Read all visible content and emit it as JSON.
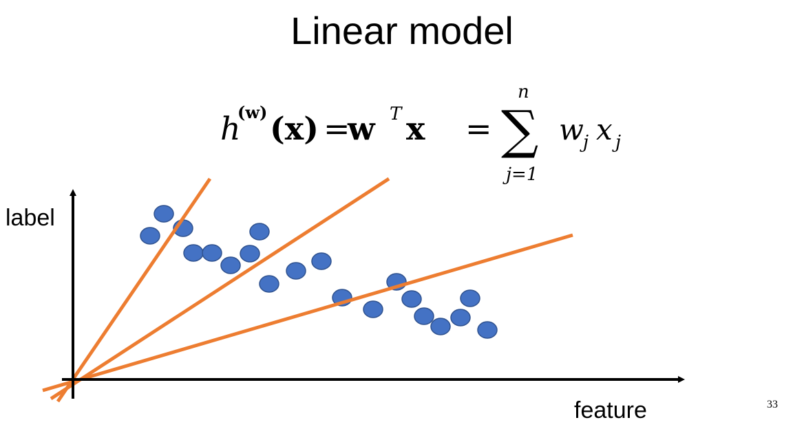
{
  "slide": {
    "title": "Linear model",
    "page_number": "33"
  },
  "formula": {
    "lhs_h": "h",
    "lhs_sup": "(w)",
    "lhs_arg": "(x)",
    "eq1": "=",
    "rhs_w": "w",
    "rhs_sup": "T",
    "rhs_x": "x",
    "eq2": "=",
    "sum_symbol": "∑",
    "sum_upper": "n",
    "sum_lower": "j=1",
    "term": "w",
    "term_sub": "j",
    "term_x": "x",
    "term_x_sub": "j"
  },
  "axes": {
    "y_label": "label",
    "x_label": "feature"
  },
  "colors": {
    "point_fill": "#4472c4",
    "point_stroke": "#2f528f",
    "line": "#ed7d31",
    "axis": "#000000"
  }
}
